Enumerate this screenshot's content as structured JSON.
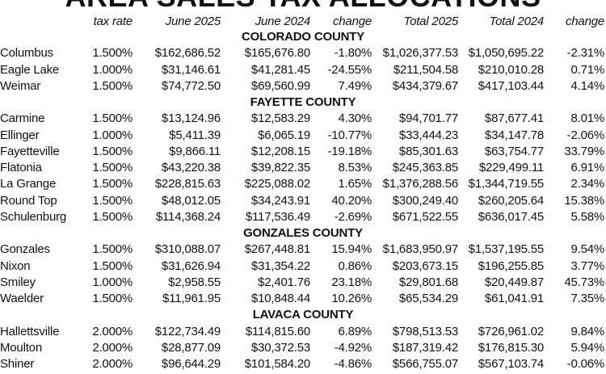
{
  "title": "AREA SALES TAX ALLOCATIONS",
  "columns": [
    "tax rate",
    "June 2025",
    "June 2024",
    "change",
    "Total 2025",
    "Total 2024",
    "change"
  ],
  "counties": [
    {
      "name": "COLORADO COUNTY",
      "rows": [
        [
          "Columbus",
          "1.500%",
          "$162,686.52",
          "$165,676.80",
          "-1.80%",
          "$1,026,377.53",
          "$1,050,695.22",
          "-2.31%"
        ],
        [
          "Eagle Lake",
          "1.000%",
          "$31,146.61",
          "$41,281.45",
          "-24.55%",
          "$211,504.58",
          "$210,010.28",
          "0.71%"
        ],
        [
          "Weimar",
          "1.500%",
          "$74,772.50",
          "$69,560.99",
          "7.49%",
          "$434,379.67",
          "$417,103.44",
          "4.14%"
        ]
      ]
    },
    {
      "name": "FAYETTE COUNTY",
      "rows": [
        [
          "Carmine",
          "1.500%",
          "$13,124.96",
          "$12,583.29",
          "4.30%",
          "$94,701.77",
          "$87,677.41",
          "8.01%"
        ],
        [
          "Ellinger",
          "1.000%",
          "$5,411.39",
          "$6,065.19",
          "-10.77%",
          "$33,444.23",
          "$34,147.78",
          "-2.06%"
        ],
        [
          "Fayetteville",
          "1.500%",
          "$9,866.11",
          "$12,208.15",
          "-19.18%",
          "$85,301.63",
          "$63,754.77",
          "33.79%"
        ],
        [
          "Flatonia",
          "1.500%",
          "$43,220.38",
          "$39,822.35",
          "8.53%",
          "$245,363.85",
          "$229,499.11",
          "6.91%"
        ],
        [
          "La Grange",
          "1.500%",
          "$228,815.63",
          "$225,088.02",
          "1.65%",
          "$1,376,288.56",
          "$1,344,719.55",
          "2.34%"
        ],
        [
          "Round Top",
          "1.500%",
          "$48,012.05",
          "$34,243.91",
          "40.20%",
          "$300,249.40",
          "$260,205.64",
          "15.38%"
        ],
        [
          "Schulenburg",
          "1.500%",
          "$114,368.24",
          "$117,536.49",
          "-2.69%",
          "$671,522.55",
          "$636,017.45",
          "5.58%"
        ]
      ]
    },
    {
      "name": "GONZALES COUNTY",
      "rows": [
        [
          "Gonzales",
          "1.500%",
          "$310,088.07",
          "$267,448.81",
          "15.94%",
          "$1,683,950.97",
          "$1,537,195.55",
          "9.54%"
        ],
        [
          "Nixon",
          "1.500%",
          "$31,626.94",
          "$31,354.22",
          "0.86%",
          "$203,673.15",
          "$196,255.85",
          "3.77%"
        ],
        [
          "Smiley",
          "1.000%",
          "$2,958.55",
          "$2,401.76",
          "23.18%",
          "$29,801.68",
          "$20,449.87",
          "45.73%"
        ],
        [
          "Waelder",
          "1.500%",
          "$11,961.95",
          "$10,848.44",
          "10.26%",
          "$65,534.29",
          "$61,041.91",
          "7.35%"
        ]
      ]
    },
    {
      "name": "LAVACA COUNTY",
      "rows": [
        [
          "Hallettsville",
          "2.000%",
          "$122,734.49",
          "$114,815.60",
          "6.89%",
          "$798,513.53",
          "$726,961.02",
          "9.84%"
        ],
        [
          "Moulton",
          "2.000%",
          "$28,877.09",
          "$30,372.53",
          "-4.92%",
          "$187,319.42",
          "$176,815.30",
          "5.94%"
        ],
        [
          "Shiner",
          "2.000%",
          "$96,644.29",
          "$101,584.20",
          "-4.86%",
          "$566,755.07",
          "$567,103.74",
          "-0.06%"
        ]
      ]
    }
  ]
}
